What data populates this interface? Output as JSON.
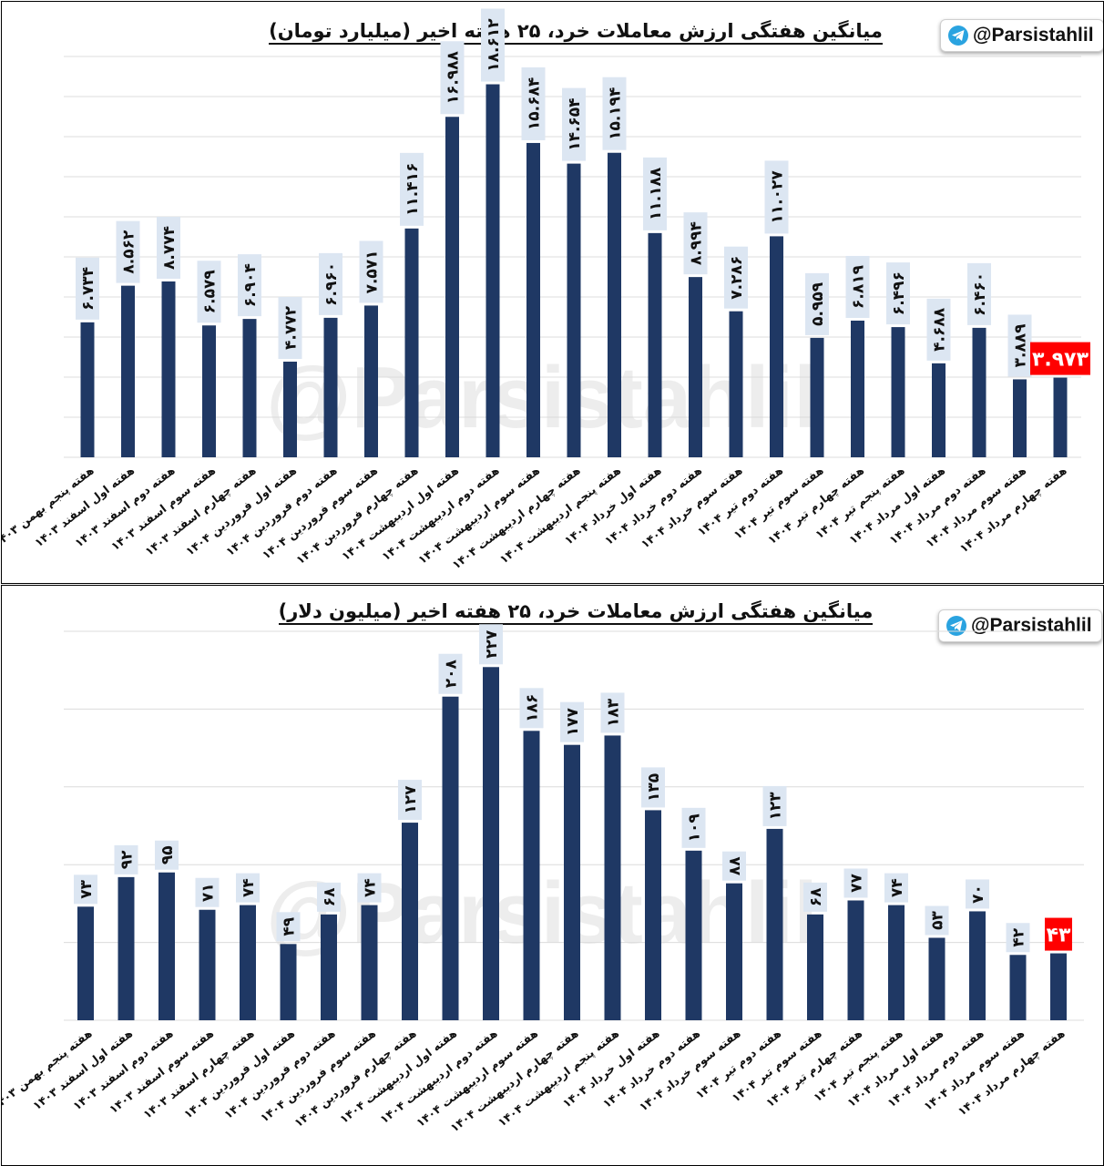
{
  "brand": {
    "handle": "@Parsistahlil",
    "icon": "telegram-icon",
    "watermark": "@Parsistahlil"
  },
  "colors": {
    "bar": "#1f3864",
    "label_bg": "#dce6f2",
    "highlight": "#ff0000",
    "grid": "#dcdcdc"
  },
  "categories": [
    "هفته پنجم بهمن ۱۴۰۳",
    "هفته اول اسفند ۱۴۰۳",
    "هفته دوم اسفند ۱۴۰۳",
    "هفته سوم اسفند ۱۴۰۳",
    "هفته چهارم اسفند ۱۴۰۳",
    "هفته اول فروردین ۱۴۰۴",
    "هفته دوم فروردین ۱۴۰۴",
    "هفته سوم فروردین ۱۴۰۴",
    "هفته چهارم فروردین ۱۴۰۴",
    "هفته اول اردیبهشت ۱۴۰۴",
    "هفته دوم اردیبهشت ۱۴۰۴",
    "هفته سوم اردیبهشت ۱۴۰۴",
    "هفته چهارم اردیبهشت ۱۴۰۴",
    "هفته پنجم اردیبهشت ۱۴۰۴",
    "هفته اول خرداد ۱۴۰۴",
    "هفته دوم خرداد ۱۴۰۴",
    "هفته سوم خرداد ۱۴۰۴",
    "هفته دوم تیر ۱۴۰۴",
    "هفته سوم تیر ۱۴۰۴",
    "هفته چهارم تیر ۱۴۰۴",
    "هفته پنجم تیر ۱۴۰۴",
    "هفته اول مرداد ۱۴۰۴",
    "هفته دوم مرداد ۱۴۰۴",
    "هفته سوم مرداد ۱۴۰۴",
    "هفته چهارم مرداد ۱۴۰۴"
  ],
  "chart_data": [
    {
      "type": "bar",
      "title": "میانگین هفتگی ارزش معاملات خرد، ۲۵ هفته اخیر (میلیارد تومان)",
      "xlabel": "",
      "ylabel": "",
      "ylim": [
        0,
        20
      ],
      "grid": true,
      "highlight_last": true,
      "values": [
        6.734,
        8.562,
        8.774,
        6.579,
        6.904,
        4.772,
        6.96,
        7.571,
        11.416,
        16.988,
        18.612,
        15.684,
        14.654,
        15.194,
        11.188,
        8.994,
        7.286,
        11.027,
        5.959,
        6.819,
        6.496,
        4.688,
        6.46,
        3.889,
        3.973
      ],
      "value_labels": [
        "۶.۷۳۴",
        "۸.۵۶۲",
        "۸.۷۷۴",
        "۶.۵۷۹",
        "۶.۹۰۴",
        "۴.۷۷۲",
        "۶.۹۶۰",
        "۷.۵۷۱",
        "۱۱.۴۱۶",
        "۱۶.۹۸۸",
        "۱۸.۶۱۲",
        "۱۵.۶۸۴",
        "۱۴.۶۵۴",
        "۱۵.۱۹۴",
        "۱۱.۱۸۸",
        "۸.۹۹۴",
        "۷.۲۸۶",
        "۱۱.۰۲۷",
        "۵.۹۵۹",
        "۶.۸۱۹",
        "۶.۴۹۶",
        "۴.۶۸۸",
        "۶.۴۶۰",
        "۳.۸۸۹",
        "۳.۹۷۳"
      ]
    },
    {
      "type": "bar",
      "title": "میانگین هفتگی ارزش معاملات خرد، ۲۵ هفته اخیر (میلیون دلار)",
      "xlabel": "",
      "ylabel": "",
      "ylim": [
        0,
        250
      ],
      "grid": true,
      "highlight_last": true,
      "values": [
        73,
        92,
        95,
        71,
        74,
        49,
        68,
        74,
        127,
        208,
        227,
        186,
        177,
        183,
        135,
        109,
        88,
        123,
        68,
        77,
        74,
        53,
        70,
        42,
        43
      ],
      "value_labels": [
        "۷۳",
        "۹۲",
        "۹۵",
        "۷۱",
        "۷۴",
        "۴۹",
        "۶۸",
        "۷۴",
        "۱۲۷",
        "۲۰۸",
        "۲۲۷",
        "۱۸۶",
        "۱۷۷",
        "۱۸۳",
        "۱۳۵",
        "۱۰۹",
        "۸۸",
        "۱۲۳",
        "۶۸",
        "۷۷",
        "۷۴",
        "۵۳",
        "۷۰",
        "۴۲",
        "۴۳"
      ]
    }
  ]
}
